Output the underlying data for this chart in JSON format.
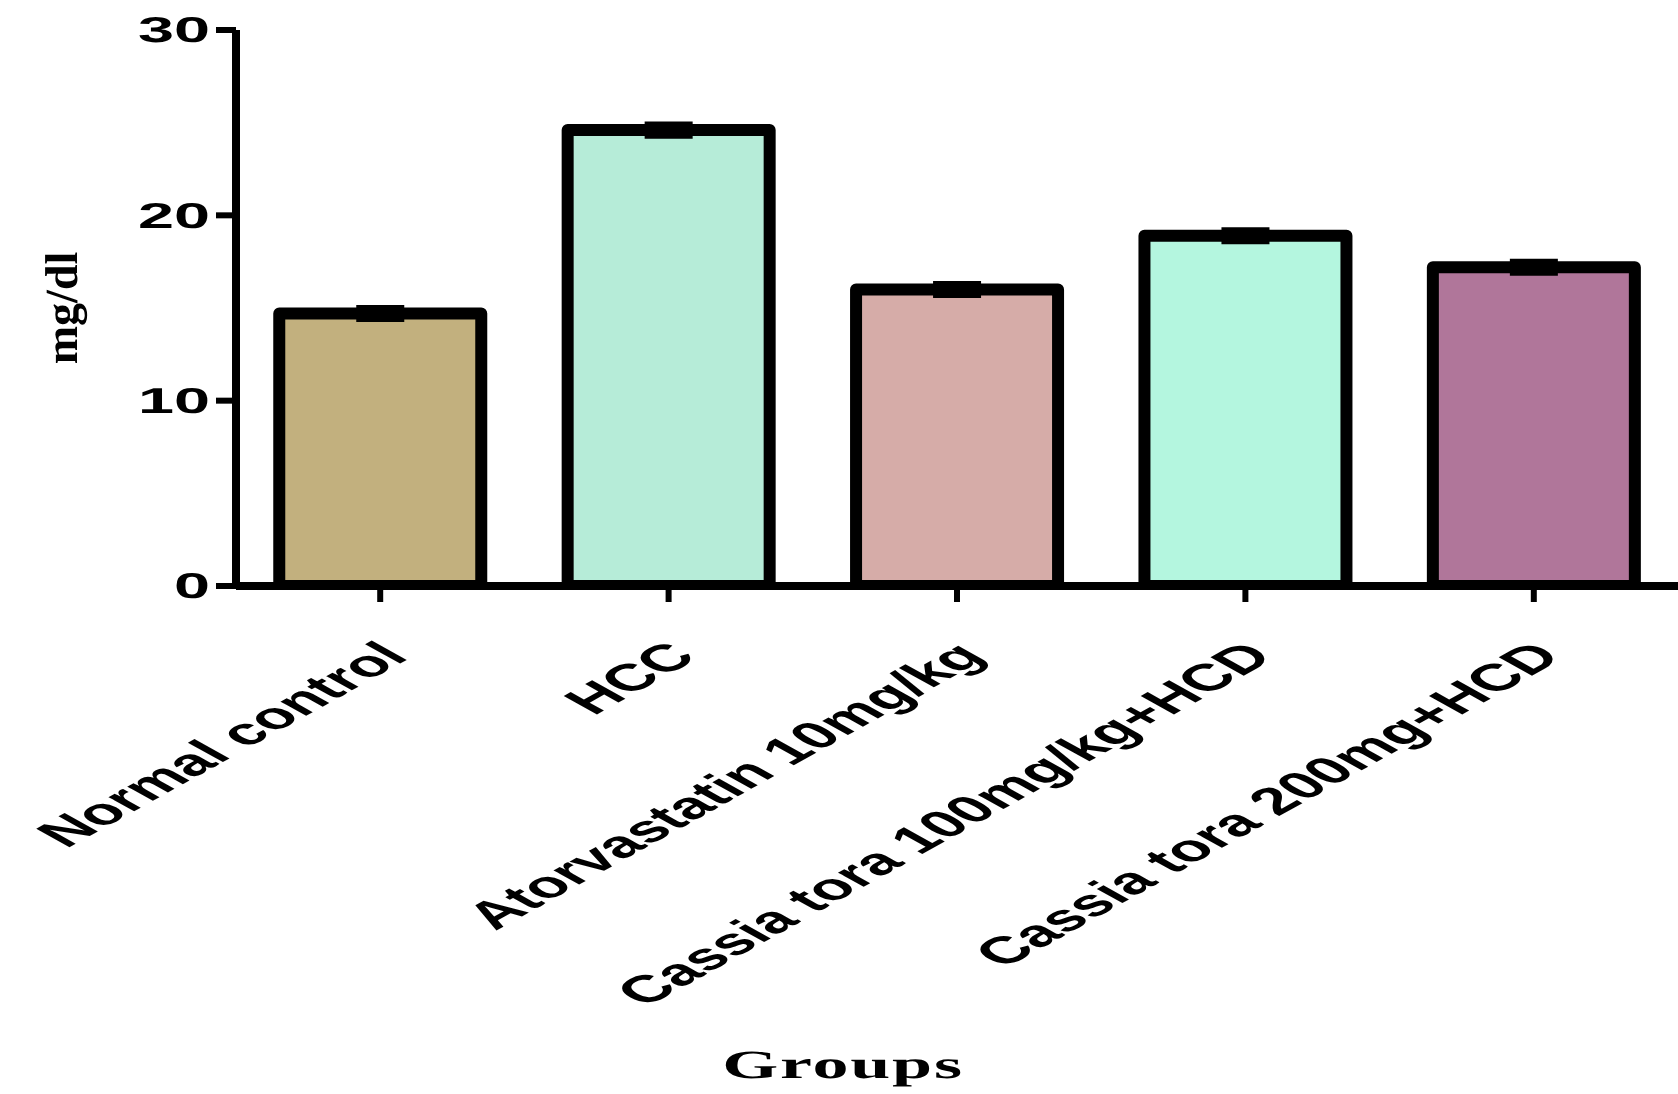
{
  "chart_data": {
    "type": "bar",
    "xlabel": "Groups",
    "ylabel": "mg/dl",
    "categories": [
      "Normal control",
      "HCC",
      "Atorvastatin 10mg/kg",
      "Cassia tora 100mg/kg+HCD",
      "Cassia tora 200mg+HCD"
    ],
    "values": [
      14.7,
      24.6,
      16.0,
      18.9,
      17.2
    ],
    "errors": [
      0.3,
      0.3,
      0.3,
      0.3,
      0.3
    ],
    "colors": [
      "#c2b07e",
      "#b6ecd8",
      "#d6aca8",
      "#b4f6df",
      "#b0769a"
    ],
    "ylim": [
      0,
      30
    ],
    "yticks": [
      0,
      10,
      20,
      30
    ]
  }
}
